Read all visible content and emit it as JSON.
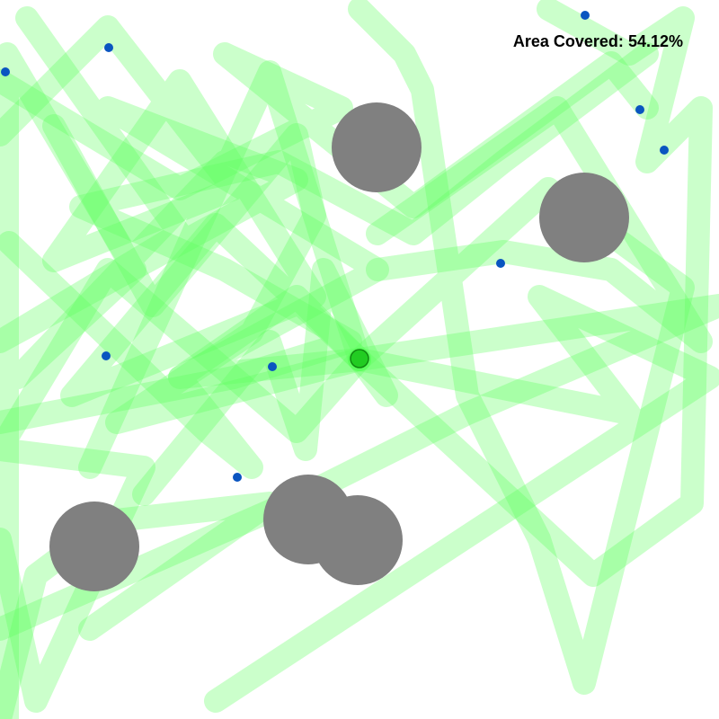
{
  "hud": {
    "label": "Area Covered:",
    "value": "54.12%"
  },
  "colors": {
    "background": "#ffffff",
    "trail": "#5cff5c",
    "obstacle": "#808080",
    "robot": "#22cc22",
    "waypoint": "#0a55c0"
  }
}
